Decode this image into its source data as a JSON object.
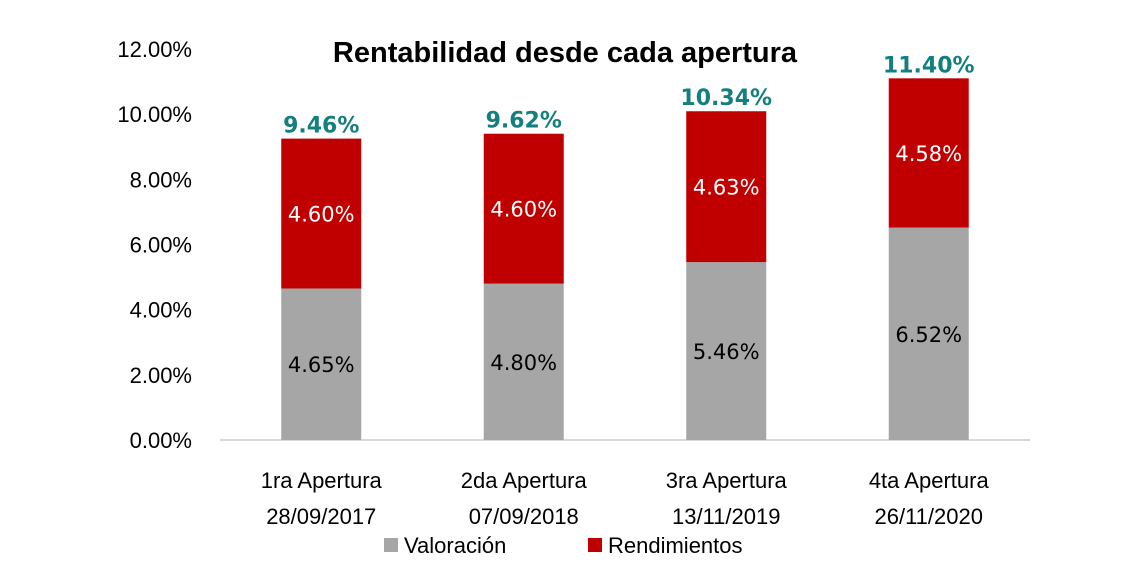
{
  "chart_data": {
    "type": "bar",
    "stacked": true,
    "title": "Rentabilidad desde cada apertura",
    "xlabel": "",
    "ylabel": "",
    "ylim": [
      0,
      12
    ],
    "y_ticks": [
      "0.00%",
      "2.00%",
      "4.00%",
      "6.00%",
      "8.00%",
      "10.00%",
      "12.00%"
    ],
    "y_tick_values": [
      0,
      2,
      4,
      6,
      8,
      10,
      12
    ],
    "grid": false,
    "legend_position": "bottom",
    "categories": [
      {
        "line1": "1ra Apertura",
        "line2": "28/09/2017"
      },
      {
        "line1": "2da Apertura",
        "line2": "07/09/2018"
      },
      {
        "line1": "3ra Apertura",
        "line2": "13/11/2019"
      },
      {
        "line1": "4ta Apertura",
        "line2": "26/11/2020"
      }
    ],
    "series": [
      {
        "name": "Valoración",
        "color": "#a6a6a6",
        "label_color": "#000000",
        "values": [
          4.65,
          4.8,
          5.46,
          6.52
        ],
        "labels": [
          "4.65%",
          "4.80%",
          "5.46%",
          "6.52%"
        ]
      },
      {
        "name": "Rendimientos",
        "color": "#c00000",
        "label_color": "#ffffff",
        "values": [
          4.6,
          4.6,
          4.63,
          4.58
        ],
        "labels": [
          "4.60%",
          "4.60%",
          "4.63%",
          "4.58%"
        ]
      }
    ],
    "totals": {
      "values": [
        9.46,
        9.62,
        10.34,
        11.4
      ],
      "labels": [
        "9.46%",
        "9.62%",
        "10.34%",
        "11.40%"
      ],
      "color": "#137f7f"
    }
  }
}
